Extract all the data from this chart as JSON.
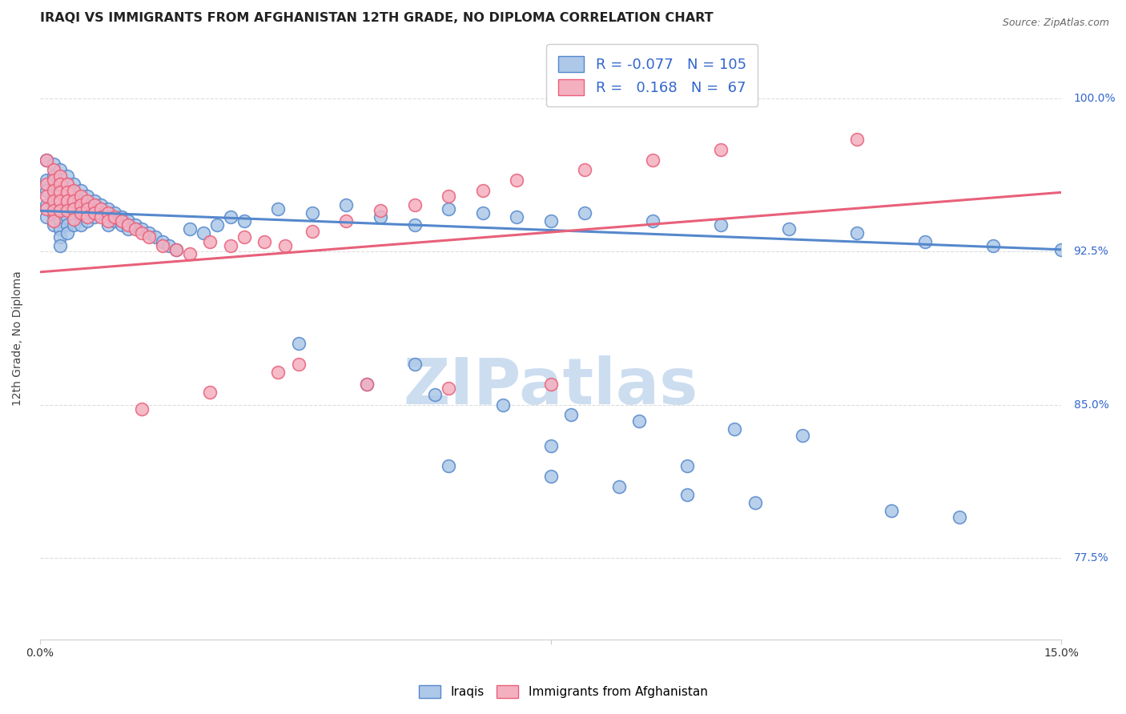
{
  "title": "IRAQI VS IMMIGRANTS FROM AFGHANISTAN 12TH GRADE, NO DIPLOMA CORRELATION CHART",
  "source": "Source: ZipAtlas.com",
  "ylabel": "12th Grade, No Diploma",
  "yticks": [
    "100.0%",
    "92.5%",
    "85.0%",
    "77.5%"
  ],
  "ytick_vals": [
    1.0,
    0.925,
    0.85,
    0.775
  ],
  "xlim": [
    0.0,
    0.15
  ],
  "ylim": [
    0.735,
    1.03
  ],
  "watermark": "ZIPatlas",
  "legend_R_iraqis": "-0.077",
  "legend_N_iraqis": "105",
  "legend_R_afghan": "0.168",
  "legend_N_afghan": "67",
  "iraqis_color": "#adc8e8",
  "afghan_color": "#f5b0c0",
  "iraqis_line_color": "#5588cc",
  "afghan_line_color": "#e8607a",
  "iraqis_edge_color": "#5588cc",
  "afghan_edge_color": "#e8607a",
  "iraqis_scatter_x": [
    0.001,
    0.001,
    0.001,
    0.001,
    0.001,
    0.002,
    0.002,
    0.002,
    0.002,
    0.002,
    0.002,
    0.002,
    0.003,
    0.003,
    0.003,
    0.003,
    0.003,
    0.003,
    0.003,
    0.003,
    0.003,
    0.004,
    0.004,
    0.004,
    0.004,
    0.004,
    0.004,
    0.004,
    0.004,
    0.005,
    0.005,
    0.005,
    0.005,
    0.005,
    0.005,
    0.006,
    0.006,
    0.006,
    0.006,
    0.006,
    0.007,
    0.007,
    0.007,
    0.007,
    0.008,
    0.008,
    0.008,
    0.009,
    0.009,
    0.01,
    0.01,
    0.01,
    0.011,
    0.011,
    0.012,
    0.012,
    0.013,
    0.013,
    0.014,
    0.015,
    0.016,
    0.017,
    0.018,
    0.019,
    0.02,
    0.022,
    0.024,
    0.026,
    0.028,
    0.03,
    0.035,
    0.04,
    0.045,
    0.05,
    0.055,
    0.06,
    0.065,
    0.07,
    0.075,
    0.08,
    0.09,
    0.1,
    0.11,
    0.12,
    0.13,
    0.14,
    0.15,
    0.055,
    0.075,
    0.095,
    0.038,
    0.048,
    0.058,
    0.068,
    0.078,
    0.088,
    0.102,
    0.112,
    0.06,
    0.075,
    0.085,
    0.095,
    0.105,
    0.125,
    0.135
  ],
  "iraqis_scatter_y": [
    0.97,
    0.96,
    0.955,
    0.948,
    0.942,
    0.968,
    0.962,
    0.956,
    0.952,
    0.948,
    0.943,
    0.938,
    0.965,
    0.96,
    0.955,
    0.95,
    0.945,
    0.94,
    0.936,
    0.932,
    0.928,
    0.962,
    0.958,
    0.954,
    0.95,
    0.946,
    0.942,
    0.938,
    0.934,
    0.958,
    0.954,
    0.95,
    0.946,
    0.942,
    0.938,
    0.955,
    0.95,
    0.946,
    0.942,
    0.938,
    0.952,
    0.948,
    0.944,
    0.94,
    0.95,
    0.946,
    0.942,
    0.948,
    0.944,
    0.946,
    0.942,
    0.938,
    0.944,
    0.94,
    0.942,
    0.938,
    0.94,
    0.936,
    0.938,
    0.936,
    0.934,
    0.932,
    0.93,
    0.928,
    0.926,
    0.936,
    0.934,
    0.938,
    0.942,
    0.94,
    0.946,
    0.944,
    0.948,
    0.942,
    0.938,
    0.946,
    0.944,
    0.942,
    0.94,
    0.944,
    0.94,
    0.938,
    0.936,
    0.934,
    0.93,
    0.928,
    0.926,
    0.87,
    0.83,
    0.82,
    0.88,
    0.86,
    0.855,
    0.85,
    0.845,
    0.842,
    0.838,
    0.835,
    0.82,
    0.815,
    0.81,
    0.806,
    0.802,
    0.798,
    0.795
  ],
  "afghan_scatter_x": [
    0.001,
    0.001,
    0.001,
    0.001,
    0.002,
    0.002,
    0.002,
    0.002,
    0.002,
    0.002,
    0.003,
    0.003,
    0.003,
    0.003,
    0.003,
    0.004,
    0.004,
    0.004,
    0.004,
    0.005,
    0.005,
    0.005,
    0.005,
    0.006,
    0.006,
    0.006,
    0.007,
    0.007,
    0.007,
    0.008,
    0.008,
    0.009,
    0.009,
    0.01,
    0.01,
    0.011,
    0.012,
    0.013,
    0.014,
    0.015,
    0.016,
    0.018,
    0.02,
    0.022,
    0.025,
    0.028,
    0.03,
    0.033,
    0.036,
    0.04,
    0.045,
    0.05,
    0.055,
    0.06,
    0.065,
    0.07,
    0.08,
    0.09,
    0.1,
    0.12,
    0.038,
    0.015,
    0.025,
    0.035,
    0.048,
    0.06,
    0.075
  ],
  "afghan_scatter_y": [
    0.97,
    0.958,
    0.952,
    0.946,
    0.965,
    0.96,
    0.955,
    0.95,
    0.945,
    0.94,
    0.962,
    0.958,
    0.954,
    0.95,
    0.945,
    0.958,
    0.954,
    0.95,
    0.945,
    0.955,
    0.95,
    0.946,
    0.941,
    0.952,
    0.948,
    0.944,
    0.95,
    0.946,
    0.942,
    0.948,
    0.944,
    0.946,
    0.942,
    0.944,
    0.94,
    0.942,
    0.94,
    0.938,
    0.936,
    0.934,
    0.932,
    0.928,
    0.926,
    0.924,
    0.93,
    0.928,
    0.932,
    0.93,
    0.928,
    0.935,
    0.94,
    0.945,
    0.948,
    0.952,
    0.955,
    0.96,
    0.965,
    0.97,
    0.975,
    0.98,
    0.87,
    0.848,
    0.856,
    0.866,
    0.86,
    0.858,
    0.86
  ],
  "iraqis_trend_x0": 0.0,
  "iraqis_trend_x1": 0.15,
  "iraqis_trend_y0": 0.945,
  "iraqis_trend_y1": 0.926,
  "afghan_trend_x0": 0.0,
  "afghan_trend_x1": 0.15,
  "afghan_trend_y0": 0.915,
  "afghan_trend_y1": 0.954,
  "grid_color": "#dddddd",
  "title_fontsize": 11.5,
  "source_fontsize": 9,
  "label_fontsize": 10,
  "tick_fontsize": 10,
  "watermark_color": "#ccddf0",
  "watermark_fontsize": 58
}
